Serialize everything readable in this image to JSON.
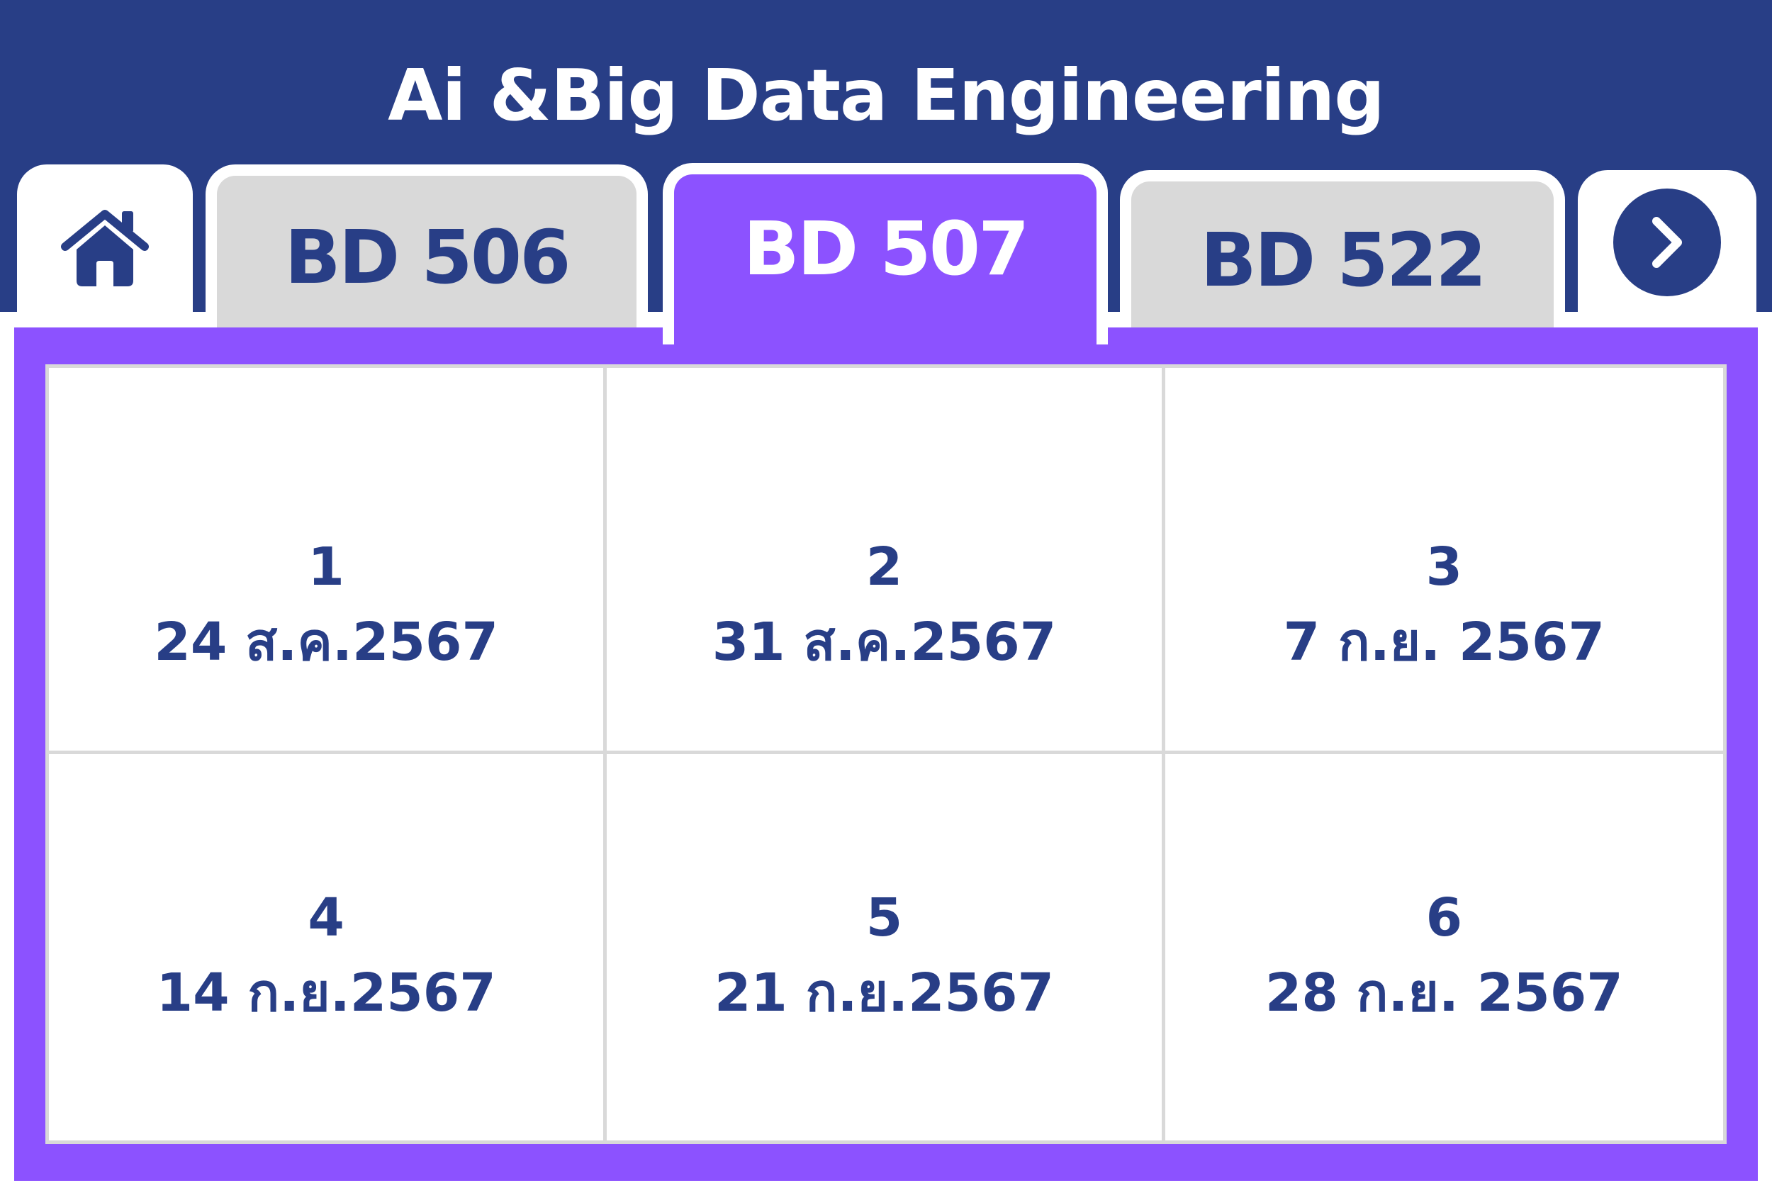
{
  "header": {
    "title": "Ai &Big Data Engineering"
  },
  "tabs": [
    {
      "label": "BD 506",
      "active": false
    },
    {
      "label": "BD 507",
      "active": true
    },
    {
      "label": "BD 522",
      "active": false
    }
  ],
  "icons": {
    "home": "home-icon",
    "next": "chevron-right-icon"
  },
  "sessions": [
    {
      "number": "1",
      "date": "24 ส.ค.2567"
    },
    {
      "number": "2",
      "date": "31 ส.ค.2567"
    },
    {
      "number": "3",
      "date": "7 ก.ย. 2567"
    },
    {
      "number": "4",
      "date": "14 ก.ย.2567"
    },
    {
      "number": "5",
      "date": "21 ก.ย.2567"
    },
    {
      "number": "6",
      "date": "28 ก.ย. 2567"
    }
  ],
  "colors": {
    "header": "#283e86",
    "accent": "#8c52ff",
    "inactive_tab": "#d9d9d9",
    "text": "#283e86"
  }
}
